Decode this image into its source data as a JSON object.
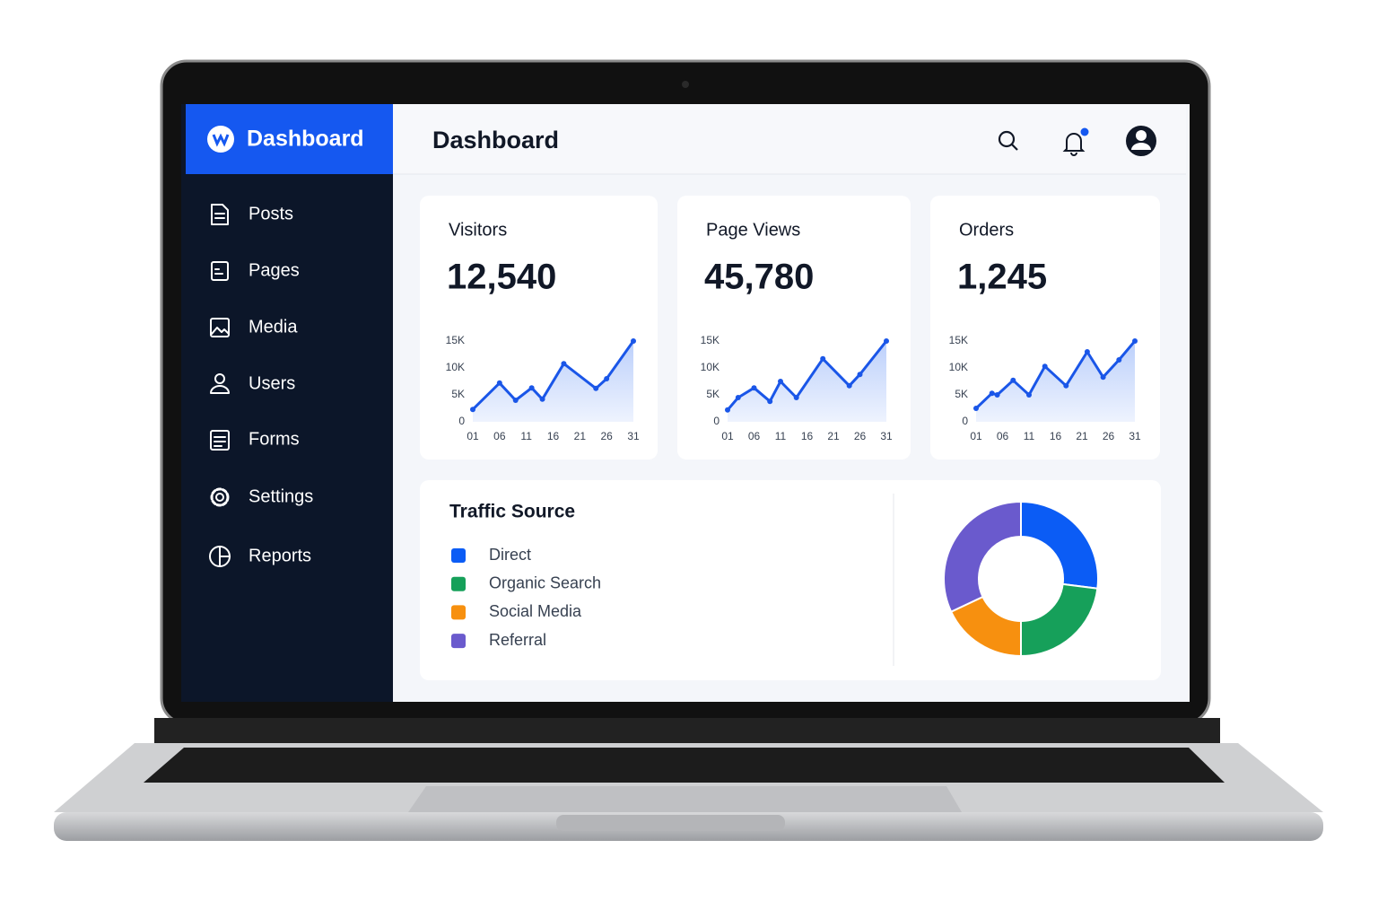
{
  "sidebar": {
    "brand": "Dashboard",
    "nav": [
      "Posts",
      "Pages",
      "Media",
      "Users",
      "Forms",
      "Settings",
      "Reports"
    ]
  },
  "header": {
    "title": "Dashboard"
  },
  "chart_data": [
    {
      "type": "line",
      "title": "Visitors",
      "subtitle": "12,540",
      "color": "#1a56e8",
      "x": [
        1,
        6,
        9,
        12,
        14,
        18,
        24,
        26,
        31
      ],
      "values": [
        2300,
        7200,
        4000,
        6300,
        4200,
        10800,
        6200,
        8000,
        15000
      ],
      "xlim": [
        1,
        31
      ],
      "xticks": [
        {
          "value": 1,
          "label": "01"
        },
        {
          "value": 6,
          "label": "06"
        },
        11,
        16,
        21,
        26,
        31
      ],
      "ylim": [
        0,
        15000
      ],
      "yticks": [
        0,
        {
          "value": 5000,
          "label": "5K"
        },
        {
          "value": 10000,
          "label": "10K"
        },
        {
          "value": 15000,
          "label": "15K"
        }
      ]
    },
    {
      "type": "line",
      "title": "Page Views",
      "subtitle": "45,780",
      "color": "#1a56e8",
      "x": [
        1,
        3,
        6,
        9,
        11,
        14,
        19,
        24,
        26,
        31
      ],
      "values": [
        2200,
        4500,
        6300,
        3800,
        7500,
        4500,
        11700,
        6700,
        8800,
        15000
      ],
      "xlim": [
        1,
        31
      ],
      "xticks": [
        {
          "value": 1,
          "label": "01"
        },
        {
          "value": 6,
          "label": "06"
        },
        11,
        16,
        21,
        26,
        31
      ],
      "ylim": [
        0,
        15000
      ],
      "yticks": [
        0,
        {
          "value": 5000,
          "label": "5K"
        },
        {
          "value": 10000,
          "label": "10K"
        },
        {
          "value": 15000,
          "label": "15K"
        }
      ]
    },
    {
      "type": "line",
      "title": "Orders",
      "subtitle": "1,245",
      "color": "#1a56e8",
      "x": [
        1,
        4,
        5,
        8,
        11,
        14,
        18,
        22,
        25,
        28,
        31
      ],
      "values": [
        2500,
        5300,
        5000,
        7700,
        5000,
        10300,
        6700,
        13000,
        8300,
        11500,
        15000
      ],
      "xlim": [
        1,
        31
      ],
      "xticks": [
        {
          "value": 1,
          "label": "01"
        },
        {
          "value": 6,
          "label": "06"
        },
        11,
        16,
        21,
        26,
        31
      ],
      "ylim": [
        0,
        15000
      ],
      "yticks": [
        0,
        {
          "value": 5000,
          "label": "5K"
        },
        {
          "value": 10000,
          "label": "10K"
        },
        {
          "value": 15000,
          "label": "15K"
        }
      ]
    },
    {
      "type": "pie",
      "title": "Traffic Source",
      "donut": true,
      "categories": [
        "Direct",
        "Organic Search",
        "Social Media",
        "Referral"
      ],
      "values": [
        27,
        23,
        18,
        32
      ],
      "colors": [
        "#0b5cf5",
        "#16a05a",
        "#f7900f",
        "#6a5acd"
      ]
    }
  ]
}
